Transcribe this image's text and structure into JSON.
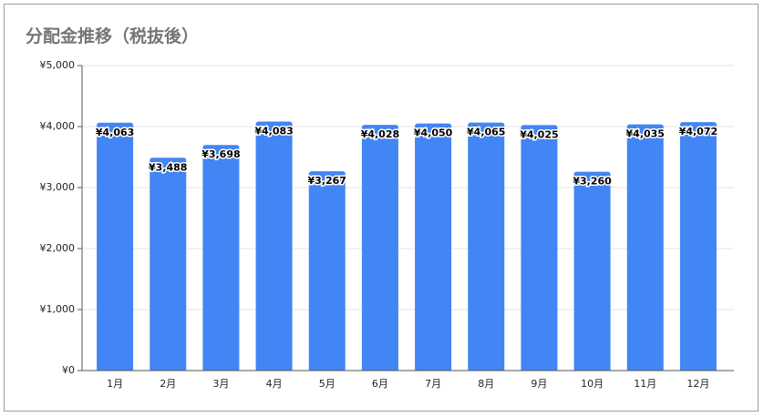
{
  "chart_data": {
    "type": "bar",
    "title": "分配金推移（税抜後）",
    "categories": [
      "1月",
      "2月",
      "3月",
      "4月",
      "5月",
      "6月",
      "7月",
      "8月",
      "9月",
      "10月",
      "11月",
      "12月"
    ],
    "values": [
      4063,
      3488,
      3698,
      4083,
      3267,
      4028,
      4050,
      4065,
      4025,
      3260,
      4035,
      4072
    ],
    "value_labels": [
      "¥4,063",
      "¥3,488",
      "¥3,698",
      "¥4,083",
      "¥3,267",
      "¥4,028",
      "¥4,050",
      "¥4,065",
      "¥4,025",
      "¥3,260",
      "¥4,035",
      "¥4,072"
    ],
    "color": "#4285f4",
    "ylim": [
      0,
      5000
    ],
    "yticks": [
      {
        "value": 0,
        "label": "¥0"
      },
      {
        "value": 1000,
        "label": "¥1,000"
      },
      {
        "value": 2000,
        "label": "¥2,000"
      },
      {
        "value": 3000,
        "label": "¥3,000"
      },
      {
        "value": 4000,
        "label": "¥4,000"
      },
      {
        "value": 5000,
        "label": "¥5,000"
      }
    ],
    "grid": true
  }
}
